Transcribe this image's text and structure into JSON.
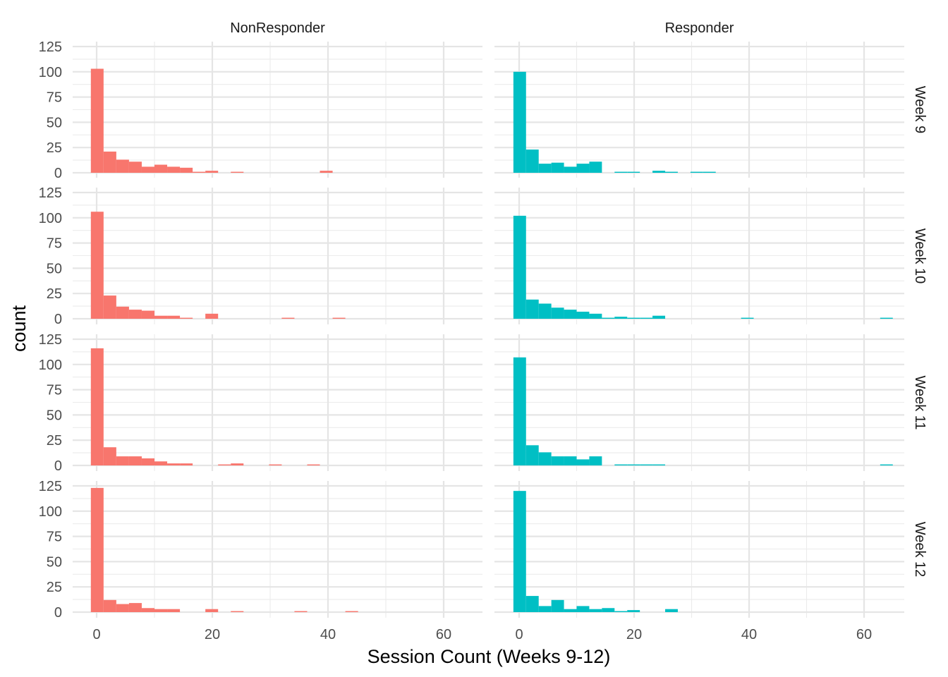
{
  "chart_data": {
    "type": "histogram",
    "xlabel": "Session Count (Weeks 9-12)",
    "ylabel": "count",
    "xlim": [
      -4,
      67
    ],
    "ylim": [
      0,
      130
    ],
    "x_ticks": [
      0,
      20,
      40,
      60
    ],
    "y_ticks": [
      0,
      25,
      50,
      75,
      100,
      125
    ],
    "bin_width": 2.2,
    "first_bin_start": -1,
    "grid": true,
    "legend": "none",
    "colors": {
      "NonResponder": "#F8766D",
      "Responder": "#00BFC4"
    },
    "columns": [
      "NonResponder",
      "Responder"
    ],
    "rows": [
      "Week 9",
      "Week 10",
      "Week 11",
      "Week 12"
    ],
    "panels": [
      {
        "row": "Week 9",
        "col": "NonResponder",
        "counts": [
          103,
          21,
          13,
          11,
          6,
          8,
          6,
          5,
          1,
          2,
          0,
          1,
          0,
          0,
          0,
          0,
          0,
          0,
          2
        ]
      },
      {
        "row": "Week 9",
        "col": "Responder",
        "counts": [
          100,
          23,
          9,
          10,
          6,
          9,
          11,
          0,
          1,
          1,
          0,
          2,
          1,
          0,
          1,
          1
        ]
      },
      {
        "row": "Week 10",
        "col": "NonResponder",
        "counts": [
          106,
          23,
          12,
          9,
          8,
          3,
          3,
          1,
          0,
          5,
          0,
          0,
          0,
          0,
          0,
          1,
          0,
          0,
          0,
          1
        ]
      },
      {
        "row": "Week 10",
        "col": "Responder",
        "counts": [
          102,
          19,
          15,
          11,
          9,
          7,
          5,
          1,
          2,
          1,
          1,
          3,
          0,
          0,
          0,
          0,
          0,
          0,
          1,
          0,
          0,
          0,
          0,
          0,
          0,
          0,
          0,
          0,
          0,
          1
        ]
      },
      {
        "row": "Week 11",
        "col": "NonResponder",
        "counts": [
          116,
          18,
          9,
          9,
          7,
          4,
          2,
          2,
          0,
          0,
          1,
          2,
          0,
          0,
          1,
          0,
          0,
          1
        ]
      },
      {
        "row": "Week 11",
        "col": "Responder",
        "counts": [
          107,
          20,
          13,
          9,
          9,
          6,
          9,
          0,
          1,
          1,
          1,
          1,
          0,
          0,
          0,
          0,
          0,
          0,
          0,
          0,
          0,
          0,
          0,
          0,
          0,
          0,
          0,
          0,
          0,
          1
        ]
      },
      {
        "row": "Week 12",
        "col": "NonResponder",
        "counts": [
          123,
          12,
          8,
          9,
          4,
          3,
          3,
          0,
          0,
          3,
          0,
          1,
          0,
          0,
          0,
          0,
          1,
          0,
          0,
          0,
          1
        ]
      },
      {
        "row": "Week 12",
        "col": "Responder",
        "counts": [
          120,
          16,
          6,
          12,
          3,
          6,
          3,
          4,
          1,
          2,
          0,
          0,
          3
        ]
      }
    ]
  }
}
